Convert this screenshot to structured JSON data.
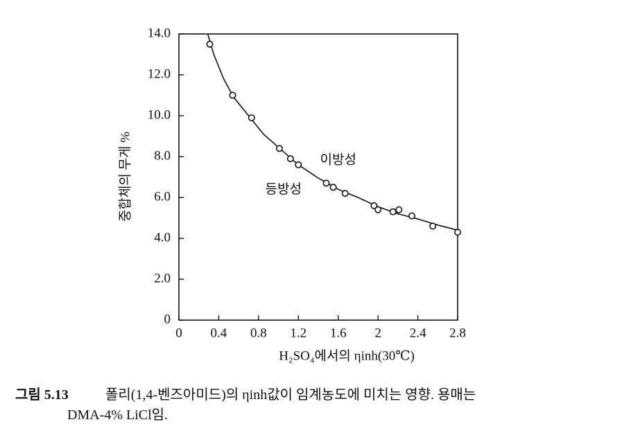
{
  "chart_data": {
    "type": "scatter",
    "xlabel": "H₂SO₄에서의 ηinh(30℃)",
    "ylabel": "중합체의 무게 %",
    "xlim": [
      0,
      2.8
    ],
    "ylim": [
      0,
      14
    ],
    "xticks": [
      0,
      0.4,
      0.8,
      1.2,
      1.6,
      2.0,
      2.4,
      2.8
    ],
    "yticks": [
      0,
      {
        "value": 2,
        "label": "2.0"
      },
      {
        "value": 4,
        "label": "4.0"
      },
      {
        "value": 6,
        "label": "6.0"
      },
      {
        "value": 8,
        "label": "8.0"
      },
      {
        "value": 10,
        "label": "10.0"
      },
      {
        "value": 12,
        "label": "12.0"
      },
      {
        "value": 14,
        "label": "14.0"
      }
    ],
    "annotations": [
      {
        "text": "이방성",
        "x": 1.6,
        "y": 7.8
      },
      {
        "text": "등방성",
        "x": 1.05,
        "y": 6.35
      }
    ],
    "series": [
      {
        "type": "scatter",
        "color": "#111111",
        "x": [
          0.31,
          0.54,
          0.73,
          1.01,
          1.12,
          1.2,
          1.48,
          1.55,
          1.67,
          1.96,
          2.0,
          2.15,
          2.21,
          2.34,
          2.55,
          2.8
        ],
        "values": [
          13.5,
          11.0,
          9.9,
          8.4,
          7.9,
          7.6,
          6.7,
          6.5,
          6.2,
          5.6,
          5.4,
          5.3,
          5.4,
          5.1,
          4.6,
          4.3
        ]
      },
      {
        "type": "line",
        "color": "#111111",
        "x": [
          0.29,
          0.35,
          0.45,
          0.55,
          0.7,
          0.85,
          1.0,
          1.2,
          1.4,
          1.6,
          1.8,
          2.0,
          2.2,
          2.4,
          2.6,
          2.8
        ],
        "values": [
          14.0,
          13.0,
          11.8,
          10.9,
          10.0,
          9.1,
          8.45,
          7.6,
          6.95,
          6.4,
          6.0,
          5.55,
          5.2,
          4.95,
          4.65,
          4.4
        ]
      }
    ]
  },
  "caption": {
    "label": "그림 5.13",
    "lines": [
      "폴리(1,4-벤즈아미드)의 ηinh값이 임계농도에 미치는 영향. 용매는",
      "DMA-4% LiCl임."
    ]
  }
}
